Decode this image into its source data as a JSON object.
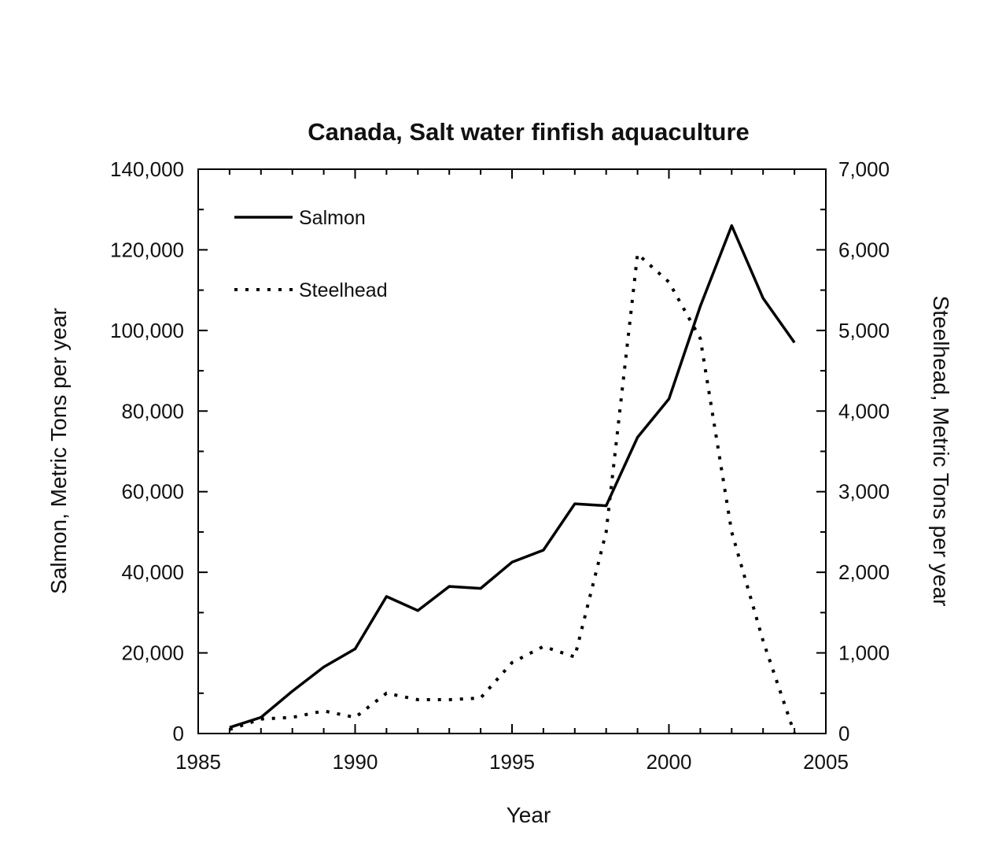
{
  "chart_data": {
    "type": "line",
    "title": "Canada, Salt water finfish aquaculture",
    "xlabel": "Year",
    "ylabel_left": "Salmon, Metric Tons per year",
    "ylabel_right": "Steelhead, Metric Tons per year",
    "xlim": [
      1985,
      2005
    ],
    "ylim_left": [
      0,
      140000
    ],
    "ylim_right": [
      0,
      7000
    ],
    "x_ticks": [
      1985,
      1990,
      1995,
      2000,
      2005
    ],
    "x_tick_labels": [
      "1985",
      "1990",
      "1995",
      "2000",
      "2005"
    ],
    "y_left_ticks": [
      0,
      20000,
      40000,
      60000,
      80000,
      100000,
      120000,
      140000
    ],
    "y_left_tick_labels": [
      "0",
      "20,000",
      "40,000",
      "60,000",
      "80,000",
      "100,000",
      "120,000",
      "140,000"
    ],
    "y_right_ticks": [
      0,
      1000,
      2000,
      3000,
      4000,
      5000,
      6000,
      7000
    ],
    "y_right_tick_labels": [
      "0",
      "1,000",
      "2,000",
      "3,000",
      "4,000",
      "5,000",
      "6,000",
      "7,000"
    ],
    "grid": false,
    "legend_position": "top-left",
    "x": [
      1986,
      1987,
      1988,
      1989,
      1990,
      1991,
      1992,
      1993,
      1994,
      1995,
      1996,
      1997,
      1998,
      1999,
      2000,
      2001,
      2002,
      2003,
      2004
    ],
    "series": [
      {
        "name": "Salmon",
        "axis": "left",
        "style": "solid",
        "color": "#000000",
        "values": [
          1500,
          4000,
          10500,
          16500,
          21000,
          34000,
          30500,
          36500,
          36000,
          42500,
          45500,
          57000,
          56500,
          73500,
          83000,
          106000,
          126000,
          108000,
          97000
        ]
      },
      {
        "name": "Steelhead",
        "axis": "right",
        "style": "dotted",
        "color": "#000000",
        "values": [
          50,
          180,
          200,
          280,
          200,
          500,
          420,
          420,
          440,
          880,
          1080,
          950,
          2500,
          5950,
          5600,
          4900,
          2500,
          1150,
          0
        ]
      }
    ]
  }
}
